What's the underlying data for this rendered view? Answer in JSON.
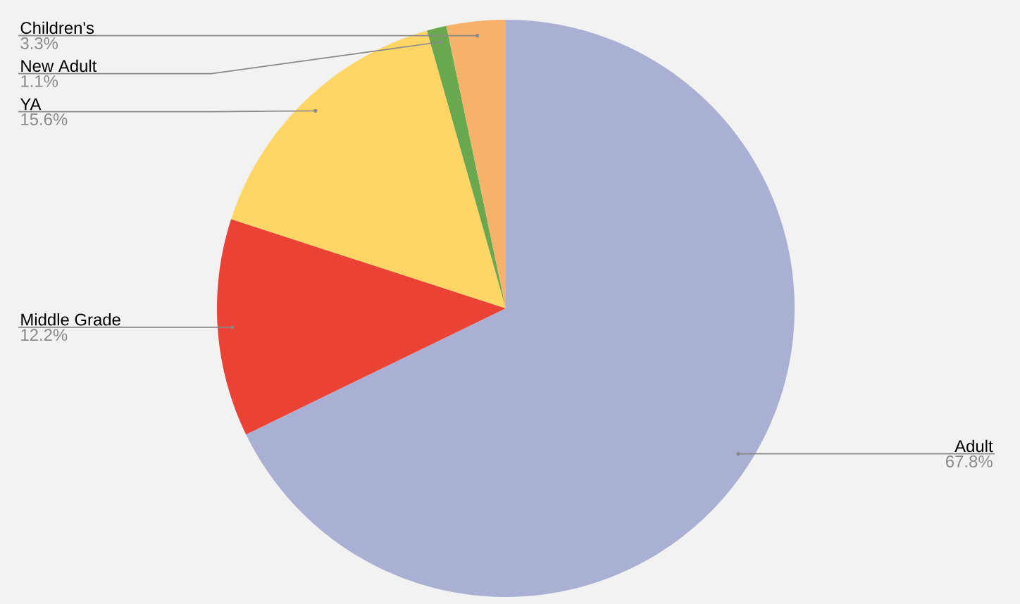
{
  "chart_data": {
    "type": "pie",
    "categories": [
      "Adult",
      "Middle Grade",
      "YA",
      "New Adult",
      "Children's"
    ],
    "values": [
      67.8,
      12.2,
      15.6,
      1.1,
      3.3
    ],
    "colors": [
      "#aab0d3",
      "#ea4335",
      "#ffd666",
      "#6aa84f",
      "#f6b26b"
    ],
    "value_labels": [
      "67.8%",
      "12.2%",
      "15.6%",
      "1.1%",
      "3.3%"
    ]
  }
}
